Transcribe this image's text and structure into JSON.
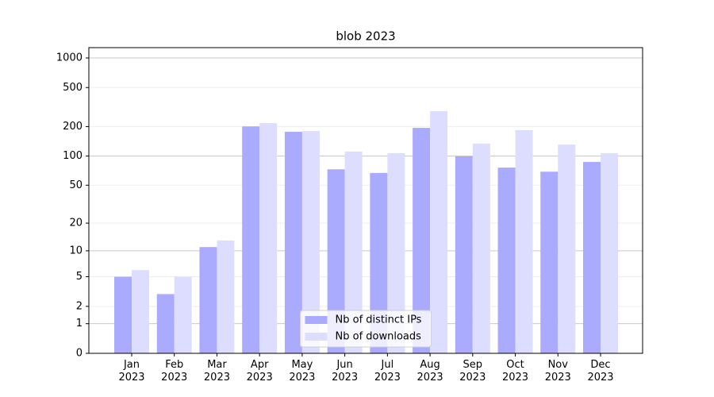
{
  "chart_data": {
    "type": "bar",
    "title": "blob 2023",
    "categories": [
      "Jan\n2023",
      "Feb\n2023",
      "Mar\n2023",
      "Apr\n2023",
      "May\n2023",
      "Jun\n2023",
      "Jul\n2023",
      "Aug\n2023",
      "Sep\n2023",
      "Oct\n2023",
      "Nov\n2023",
      "Dec\n2023"
    ],
    "series": [
      {
        "name": "Nb of distinct IPs",
        "color": "#aaaaff",
        "values": [
          5,
          3,
          11,
          201,
          177,
          73,
          67,
          194,
          99,
          76,
          69,
          87
        ]
      },
      {
        "name": "Nb of downloads",
        "color": "#ddddff",
        "values": [
          6,
          5,
          13,
          217,
          180,
          111,
          107,
          287,
          134,
          184,
          131,
          107
        ]
      }
    ],
    "yscale": "log1p",
    "ylim": [
      0,
      1273
    ],
    "yticks": [
      0,
      1,
      2,
      5,
      10,
      20,
      50,
      100,
      200,
      500,
      1000
    ],
    "grid": true,
    "legend": "lower center"
  }
}
